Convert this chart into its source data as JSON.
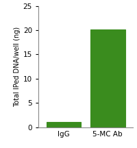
{
  "categories": [
    "IgG",
    "5-MC Ab"
  ],
  "values": [
    1.1,
    20.2
  ],
  "bar_color": "#3a8c1e",
  "bar_edge_color": "#3a8c1e",
  "ylabel": "Total IPed DNA/well (ng)",
  "ylim": [
    0,
    25
  ],
  "yticks": [
    0,
    5,
    10,
    15,
    20,
    25
  ],
  "bar_width": 0.55,
  "background_color": "#ffffff",
  "ylabel_fontsize": 7.0,
  "tick_fontsize": 7.5,
  "label_fontsize": 7.5,
  "bar_positions": [
    0.3,
    1.0
  ]
}
